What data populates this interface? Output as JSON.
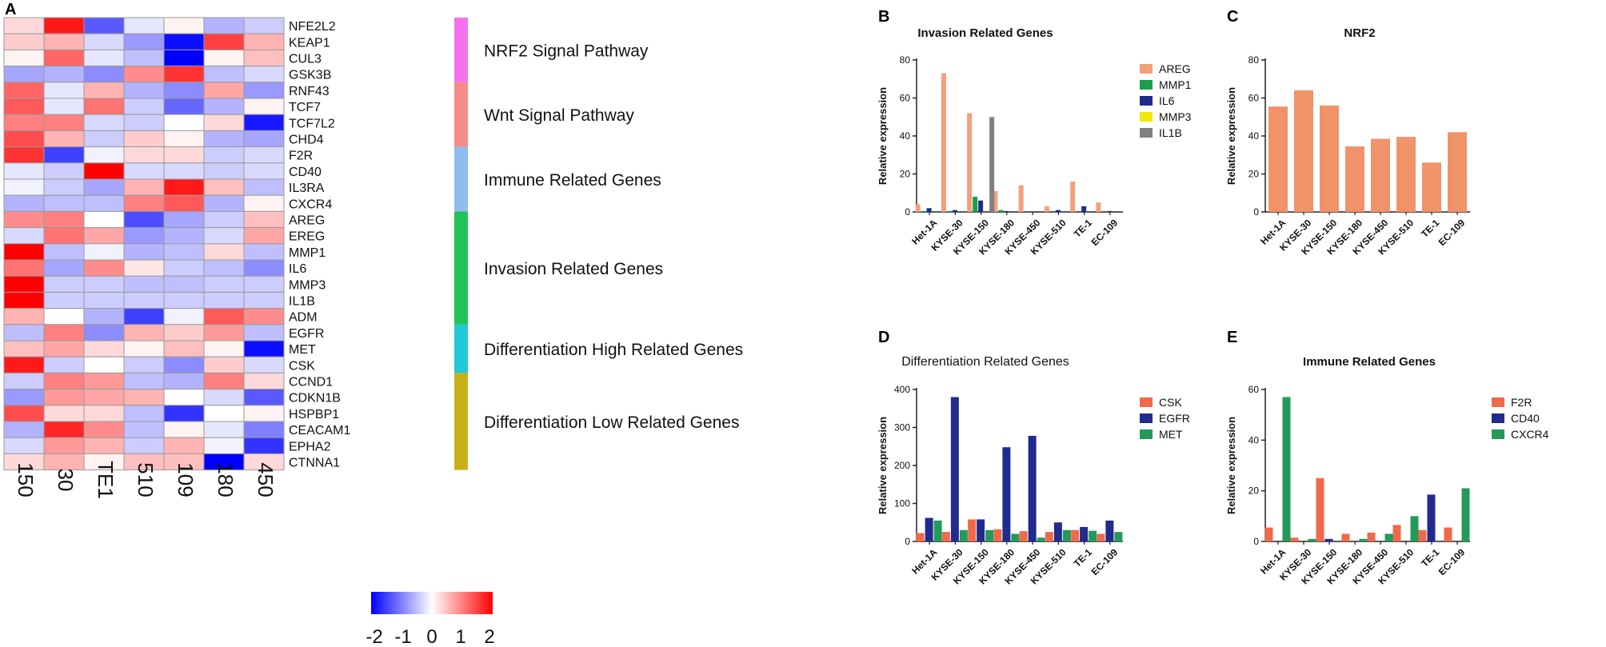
{
  "colors": {
    "heat_low": "#0000ff",
    "heat_mid": "#ffffff",
    "heat_high": "#ff0000",
    "AREG": "#f3a07c",
    "MMP1": "#1a9e4a",
    "IL6": "#1f2d8a",
    "MMP3": "#f2e60f",
    "IL1B": "#808080",
    "NRF2": "#f0926a",
    "CSK": "#ef6a4a",
    "EGFR": "#212a8e",
    "MET": "#239a5a",
    "F2R": "#ef6a4a",
    "CD40": "#212a8e",
    "CXCR4": "#239a5a"
  },
  "panel_letters": {
    "a": "A",
    "b": "B",
    "c": "C",
    "d": "D",
    "e": "E"
  },
  "heatmap": {
    "columns": [
      "150",
      "30",
      "TE1",
      "510",
      "109",
      "180",
      "450"
    ],
    "rows": [
      "NFE2L2",
      "KEAP1",
      "CUL3",
      "GSK3B",
      "RNF43",
      "TCF7",
      "TCF7L2",
      "CHD4",
      "F2R",
      "CD40",
      "IL3RA",
      "CXCR4",
      "AREG",
      "EREG",
      "MMP1",
      "IL6",
      "MMP3",
      "IL1B",
      "ADM",
      "EGFR",
      "MET",
      "CSK",
      "CCND1",
      "CDKN1B",
      "HSPBP1",
      "CEACAM1",
      "EPHA2",
      "CTNNA1"
    ],
    "values": [
      [
        0.3,
        1.8,
        -1.3,
        -0.2,
        0.1,
        -0.6,
        -0.4
      ],
      [
        0.4,
        0.6,
        -0.3,
        -0.8,
        -1.9,
        1.5,
        0.6
      ],
      [
        0.1,
        1.2,
        -0.2,
        -0.5,
        -2.0,
        0.1,
        0.5
      ],
      [
        -0.7,
        -0.6,
        -0.9,
        0.9,
        1.6,
        -0.5,
        -0.3
      ],
      [
        1.2,
        -0.2,
        0.6,
        -0.6,
        -0.9,
        0.7,
        -0.8
      ],
      [
        1.3,
        -0.2,
        1.1,
        -0.4,
        -1.2,
        -0.6,
        0.1
      ],
      [
        1.0,
        1.0,
        -0.3,
        -0.4,
        0.0,
        0.3,
        -1.8
      ],
      [
        1.4,
        0.6,
        -0.4,
        0.4,
        0.1,
        -0.6,
        -0.7
      ],
      [
        1.6,
        -1.5,
        -0.1,
        0.3,
        0.3,
        -0.4,
        -0.3
      ],
      [
        -0.2,
        -0.4,
        2.0,
        -0.3,
        -0.3,
        -0.4,
        -0.3
      ],
      [
        -0.1,
        -0.4,
        -0.7,
        0.6,
        1.8,
        0.5,
        -0.5
      ],
      [
        -0.6,
        -0.5,
        -0.5,
        1.0,
        1.3,
        -0.6,
        0.1
      ],
      [
        0.9,
        1.0,
        0.0,
        -1.4,
        -0.7,
        -0.4,
        0.5
      ],
      [
        -0.3,
        1.1,
        0.7,
        -0.8,
        -0.6,
        -0.3,
        0.7
      ],
      [
        2.0,
        -0.5,
        -0.1,
        -0.6,
        -0.5,
        0.3,
        -0.5
      ],
      [
        1.1,
        -0.7,
        0.9,
        0.2,
        -0.4,
        -0.5,
        -0.9
      ],
      [
        2.0,
        -0.4,
        -0.4,
        -0.5,
        -0.5,
        -0.4,
        -0.4
      ],
      [
        2.0,
        -0.4,
        -0.4,
        -0.4,
        -0.4,
        -0.4,
        -0.4
      ],
      [
        0.6,
        0.0,
        -0.6,
        -1.5,
        -0.1,
        1.3,
        0.9
      ],
      [
        -0.5,
        1.0,
        -0.9,
        0.6,
        0.4,
        0.8,
        -0.5
      ],
      [
        0.5,
        0.7,
        0.3,
        0.1,
        0.5,
        0.1,
        -1.9
      ],
      [
        1.8,
        -0.4,
        0.0,
        -0.4,
        -0.9,
        0.4,
        -0.3
      ],
      [
        -0.4,
        1.0,
        0.8,
        -0.5,
        -0.6,
        1.0,
        0.3
      ],
      [
        -0.8,
        0.8,
        0.7,
        0.6,
        0.0,
        -0.3,
        -1.3
      ],
      [
        1.4,
        0.3,
        0.3,
        -0.5,
        -1.6,
        0.0,
        0.1
      ],
      [
        -0.6,
        1.7,
        0.9,
        -0.5,
        0.1,
        -0.2,
        -1.0
      ],
      [
        -0.3,
        0.8,
        0.6,
        -0.4,
        0.6,
        -0.1,
        -1.6
      ],
      [
        0.3,
        0.6,
        0.1,
        0.5,
        0.5,
        -2.0,
        0.3
      ]
    ],
    "groups": [
      {
        "label": "NRF2 Signal Pathway",
        "color": "#f472ef",
        "rows": 4
      },
      {
        "label": "Wnt Signal Pathway",
        "color": "#f48a8a",
        "rows": 4
      },
      {
        "label": "Immune Related Genes",
        "color": "#8fbdf0",
        "rows": 4
      },
      {
        "label": "Invasion Related Genes",
        "color": "#22c25a",
        "rows": 7
      },
      {
        "label": "Differentiation High Related Genes",
        "color": "#22c8d8",
        "rows": 3
      },
      {
        "label": "Differentiation Low Related Genes",
        "color": "#c8b019",
        "rows": 6
      }
    ],
    "scale_ticks": [
      "-2",
      "-1",
      "0",
      "1",
      "2"
    ]
  },
  "chart_data": [
    {
      "panel": "B",
      "type": "bar",
      "title": "Invasion Related Genes",
      "ylabel": "Relative expression",
      "categories": [
        "Het-1A",
        "KYSE-30",
        "KYSE-150",
        "KYSE-180",
        "KYSE-450",
        "KYSE-510",
        "TE-1",
        "EC-109"
      ],
      "ylim": [
        0,
        80
      ],
      "yticks": [
        0,
        20,
        40,
        60,
        80
      ],
      "legend_position": "top-right",
      "series": [
        {
          "name": "AREG",
          "values": [
            4,
            73,
            52,
            11,
            14,
            3,
            16,
            5
          ]
        },
        {
          "name": "MMP1",
          "values": [
            0.5,
            0.5,
            8,
            1,
            0,
            0,
            0,
            0
          ]
        },
        {
          "name": "IL6",
          "values": [
            2,
            1,
            6,
            0.5,
            0,
            1,
            3,
            0.5
          ]
        },
        {
          "name": "MMP3",
          "values": [
            0,
            0,
            0,
            0,
            0,
            0,
            0,
            0
          ]
        },
        {
          "name": "IL1B",
          "values": [
            0,
            0,
            50,
            0,
            0,
            0,
            0,
            0
          ]
        }
      ]
    },
    {
      "panel": "C",
      "type": "bar",
      "title": "NRF2",
      "ylabel": "Relative expression",
      "categories": [
        "Het-1A",
        "KYSE-30",
        "KYSE-150",
        "KYSE-180",
        "KYSE-450",
        "KYSE-510",
        "TE-1",
        "EC-109"
      ],
      "ylim": [
        0,
        80
      ],
      "yticks": [
        0,
        20,
        40,
        60,
        80
      ],
      "series": [
        {
          "name": "NRF2",
          "values": [
            55.5,
            64,
            56,
            34.5,
            38.5,
            39.5,
            26,
            42
          ]
        }
      ]
    },
    {
      "panel": "D",
      "type": "bar",
      "title": "Differentiation Related Genes",
      "ylabel": "Relative expression",
      "categories": [
        "Het-1A",
        "KYSE-30",
        "KYSE-150",
        "KYSE-180",
        "KYSE-450",
        "KYSE-510",
        "TE-1",
        "EC-109"
      ],
      "ylim": [
        0,
        400
      ],
      "yticks": [
        0,
        100,
        200,
        300,
        400
      ],
      "legend_position": "top-right",
      "series": [
        {
          "name": "CSK",
          "values": [
            22,
            25,
            58,
            32,
            27,
            25,
            30,
            20
          ]
        },
        {
          "name": "EGFR",
          "values": [
            62,
            380,
            58,
            248,
            278,
            50,
            38,
            55
          ]
        },
        {
          "name": "MET",
          "values": [
            55,
            30,
            30,
            20,
            10,
            30,
            28,
            25
          ]
        }
      ]
    },
    {
      "panel": "E",
      "type": "bar",
      "title": "Immune Related Genes",
      "ylabel": "Relative expression",
      "categories": [
        "Het-1A",
        "KYSE-30",
        "KYSE-150",
        "KYSE-180",
        "KYSE-450",
        "KYSE-510",
        "TE-1",
        "EC-109"
      ],
      "ylim": [
        0,
        60
      ],
      "yticks": [
        0,
        20,
        40,
        60
      ],
      "legend_position": "top-right",
      "series": [
        {
          "name": "F2R",
          "values": [
            5.5,
            1.5,
            25,
            3,
            3.5,
            6.5,
            4.5,
            5.5
          ]
        },
        {
          "name": "CD40",
          "values": [
            0,
            0,
            1,
            0,
            0,
            0,
            18.5,
            0
          ]
        },
        {
          "name": "CXCR4",
          "values": [
            57,
            1,
            0,
            1,
            3,
            10,
            0,
            21
          ]
        }
      ]
    }
  ]
}
